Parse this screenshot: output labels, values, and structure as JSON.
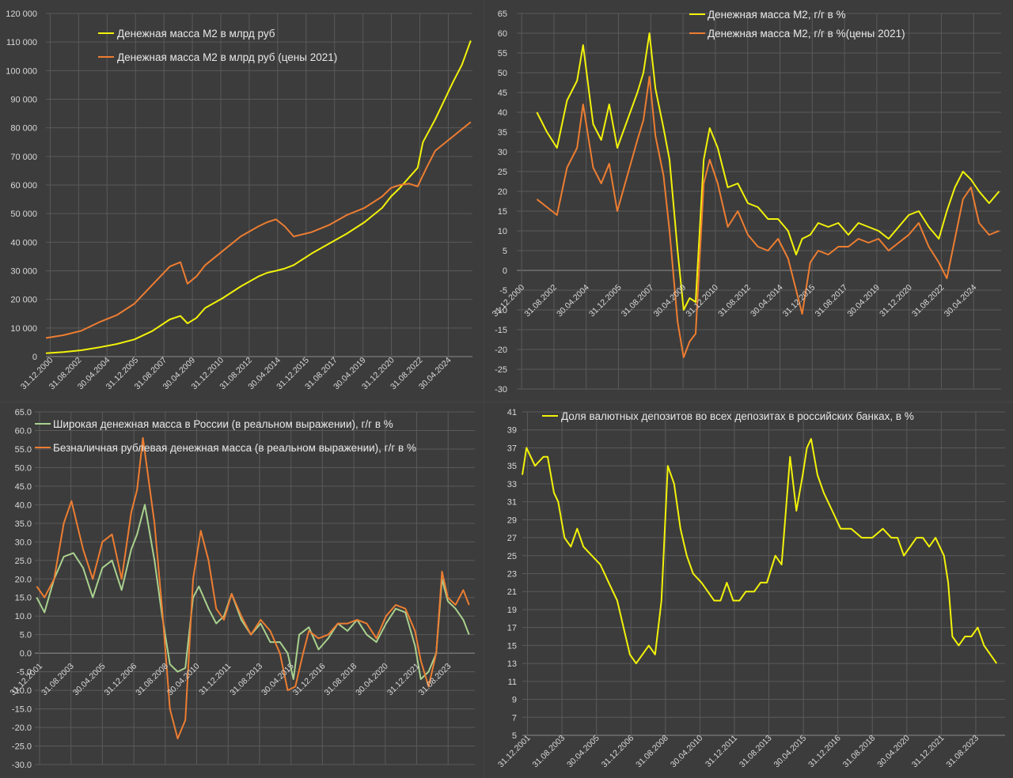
{
  "chart_data": [
    {
      "type": "line",
      "ylim": [
        0,
        120000
      ],
      "yticks": [
        0,
        10000,
        20000,
        30000,
        40000,
        50000,
        60000,
        70000,
        80000,
        90000,
        100000,
        110000,
        120000
      ],
      "ytick_labels": [
        "0",
        "10 000",
        "20 000",
        "30 000",
        "40 000",
        "50 000",
        "60 000",
        "70 000",
        "80 000",
        "90 000",
        "100 000",
        "110 000",
        "120 000"
      ],
      "xlim": [
        2001.0,
        2025.1
      ],
      "xtick_labels": [
        "31.12.2000",
        "31.08.2002",
        "30.04.2004",
        "31.12.2005",
        "31.08.2007",
        "30.04.2009",
        "31.12.2010",
        "31.08.2012",
        "30.04.2014",
        "31.12.2015",
        "31.08.2017",
        "30.04.2019",
        "31.12.2020",
        "31.08.2022",
        "30.04.2024"
      ],
      "legend_placement": "top-left",
      "series": [
        {
          "name": "Денежная масса М2 в млрд руб",
          "color": "#f2f20a",
          "x": [
            2001.0,
            2002.0,
            2003.0,
            2004.0,
            2005.0,
            2006.0,
            2007.0,
            2008.0,
            2008.6,
            2009.0,
            2009.5,
            2010.0,
            2011.0,
            2012.0,
            2013.0,
            2013.5,
            2014.0,
            2014.5,
            2015.0,
            2016.0,
            2017.0,
            2018.0,
            2019.0,
            2020.0,
            2020.5,
            2021.0,
            2022.0,
            2022.3,
            2023.0,
            2024.0,
            2024.5,
            2025.0
          ],
          "y": [
            1200,
            1600,
            2200,
            3200,
            4400,
            6000,
            8900,
            13000,
            14200,
            11600,
            13500,
            17000,
            20500,
            24500,
            28000,
            29300,
            30000,
            30800,
            32000,
            36000,
            39500,
            43000,
            47000,
            52000,
            56000,
            59000,
            66000,
            75000,
            83000,
            96000,
            102000,
            110500
          ]
        },
        {
          "name": "Денежная масса М2 в млрд руб (цены 2021)",
          "color": "#ed7d31",
          "x": [
            2001.0,
            2002.0,
            2003.0,
            2004.0,
            2005.0,
            2006.0,
            2007.0,
            2008.0,
            2008.6,
            2009.0,
            2009.5,
            2010.0,
            2011.0,
            2012.0,
            2013.0,
            2013.5,
            2014.0,
            2014.5,
            2015.0,
            2016.0,
            2017.0,
            2018.0,
            2019.0,
            2020.0,
            2020.5,
            2021.0,
            2021.5,
            2022.0,
            2022.5,
            2023.0,
            2024.0,
            2025.0
          ],
          "y": [
            6500,
            7500,
            9000,
            12000,
            14500,
            18500,
            25000,
            31500,
            33000,
            25500,
            28000,
            32000,
            37000,
            42000,
            45500,
            47000,
            48000,
            45500,
            42000,
            43500,
            46000,
            49500,
            52000,
            56000,
            59000,
            60000,
            60500,
            59500,
            66000,
            72000,
            77000,
            82000
          ]
        }
      ]
    },
    {
      "type": "line",
      "ylim": [
        -30,
        65
      ],
      "yticks": [
        -30,
        -25,
        -20,
        -15,
        -10,
        -5,
        0,
        5,
        10,
        15,
        20,
        25,
        30,
        35,
        40,
        45,
        50,
        55,
        60,
        65
      ],
      "ytick_labels": [
        "-30",
        "-25",
        "-20",
        "-15",
        "-10",
        "-5",
        "0",
        "5",
        "10",
        "15",
        "20",
        "25",
        "30",
        "35",
        "40",
        "45",
        "50",
        "55",
        "60",
        "65"
      ],
      "xlim": [
        2001.0,
        2025.1
      ],
      "xtick_labels": [
        "31.12.2000",
        "31.08.2002",
        "30.04.2004",
        "31.12.2005",
        "31.08.2007",
        "30.04.2009",
        "31.12.2010",
        "31.08.2012",
        "30.04.2014",
        "31.12.2015",
        "31.08.2017",
        "30.04.2019",
        "31.12.2020",
        "31.08.2022",
        "30.04.2024"
      ],
      "legend_placement": "top-center",
      "series": [
        {
          "name": "Денежная масса М2, г/г в %",
          "color": "#f2f20a",
          "x": [
            2002.0,
            2002.5,
            2003.0,
            2003.5,
            2004.0,
            2004.3,
            2004.8,
            2005.2,
            2005.6,
            2006.0,
            2006.5,
            2007.0,
            2007.3,
            2007.6,
            2007.9,
            2008.3,
            2008.6,
            2009.0,
            2009.3,
            2009.6,
            2009.9,
            2010.3,
            2010.6,
            2011.0,
            2011.5,
            2012.0,
            2012.5,
            2013.0,
            2013.5,
            2014.0,
            2014.5,
            2014.9,
            2015.2,
            2015.6,
            2016.0,
            2016.5,
            2017.0,
            2017.5,
            2018.0,
            2018.5,
            2019.0,
            2019.5,
            2020.0,
            2020.5,
            2021.0,
            2021.5,
            2022.0,
            2022.4,
            2022.8,
            2023.2,
            2023.6,
            2024.0,
            2024.5,
            2025.0
          ],
          "y": [
            40,
            35,
            31,
            43,
            48,
            57,
            37,
            33,
            42,
            31,
            38,
            45,
            50,
            60,
            46,
            36,
            28,
            5,
            -10,
            -7,
            -8,
            28,
            36,
            31,
            21,
            22,
            17,
            16,
            13,
            13,
            10,
            4,
            8,
            9,
            12,
            11,
            12,
            9,
            12,
            11,
            10,
            8,
            11,
            14,
            15,
            11,
            8,
            15,
            21,
            25,
            23,
            20,
            17,
            20
          ]
        },
        {
          "name": "Денежная масса М2, г/г в %(цены 2021)",
          "color": "#ed7d31",
          "x": [
            2002.0,
            2002.5,
            2003.0,
            2003.5,
            2004.0,
            2004.3,
            2004.8,
            2005.2,
            2005.6,
            2006.0,
            2006.5,
            2007.0,
            2007.3,
            2007.6,
            2007.9,
            2008.3,
            2008.6,
            2009.0,
            2009.3,
            2009.6,
            2009.9,
            2010.3,
            2010.6,
            2011.0,
            2011.5,
            2012.0,
            2012.5,
            2013.0,
            2013.5,
            2014.0,
            2014.5,
            2014.9,
            2015.2,
            2015.6,
            2016.0,
            2016.5,
            2017.0,
            2017.5,
            2018.0,
            2018.5,
            2019.0,
            2019.5,
            2020.0,
            2020.5,
            2021.0,
            2021.5,
            2022.0,
            2022.4,
            2022.8,
            2023.2,
            2023.6,
            2024.0,
            2024.5,
            2025.0
          ],
          "y": [
            18,
            16,
            14,
            26,
            31,
            42,
            26,
            22,
            27,
            15,
            24,
            33,
            38,
            49,
            34,
            24,
            10,
            -13,
            -22,
            -18,
            -16,
            22,
            28,
            22,
            11,
            15,
            9,
            6,
            5,
            8,
            3,
            -5,
            -11,
            2,
            5,
            4,
            6,
            6,
            8,
            7,
            8,
            5,
            7,
            9,
            12,
            6,
            2,
            -2,
            8,
            18,
            21,
            12,
            9,
            10
          ]
        }
      ]
    },
    {
      "type": "line",
      "ylim": [
        -30,
        65
      ],
      "yticks": [
        -30,
        -25,
        -20,
        -15,
        -10,
        -5,
        0,
        5,
        10,
        15,
        20,
        25,
        30,
        35,
        40,
        45,
        50,
        55,
        60,
        65
      ],
      "ytick_labels": [
        "-30.0",
        "-25.0",
        "-20.0",
        "-15.0",
        "-10.0",
        "-5.0",
        "0.0",
        "5.0",
        "10.0",
        "15.0",
        "20.0",
        "25.0",
        "30.0",
        "35.0",
        "40.0",
        "45.0",
        "50.0",
        "55.0",
        "60.0",
        "65.0"
      ],
      "xlim": [
        2001.8,
        2024.6
      ],
      "xtick_labels": [
        "31.12.2001",
        "31.08.2003",
        "30.04.2005",
        "31.12.2006",
        "31.08.2008",
        "30.04.2010",
        "31.12.2011",
        "31.08.2013",
        "30.04.2015",
        "31.12.2016",
        "31.08.2018",
        "30.04.2020",
        "31.12.2021",
        "31.08.2023"
      ],
      "legend_placement": "top-left",
      "series": [
        {
          "name": "Широкая денежная масса в России (в реальном выражении), г/г в %",
          "color": "#a9d18e",
          "x": [
            2001.9,
            2002.3,
            2002.8,
            2003.3,
            2003.8,
            2004.3,
            2004.8,
            2005.3,
            2005.8,
            2006.3,
            2006.8,
            2007.1,
            2007.5,
            2008.0,
            2008.4,
            2008.8,
            2009.2,
            2009.6,
            2010.0,
            2010.3,
            2010.8,
            2011.2,
            2011.6,
            2012.0,
            2012.5,
            2013.0,
            2013.5,
            2014.0,
            2014.5,
            2014.9,
            2015.2,
            2015.5,
            2016.0,
            2016.5,
            2017.0,
            2017.5,
            2018.0,
            2018.5,
            2019.0,
            2019.5,
            2020.0,
            2020.5,
            2021.0,
            2021.5,
            2021.8,
            2022.2,
            2022.6,
            2022.9,
            2023.2,
            2023.6,
            2024.0,
            2024.3
          ],
          "y": [
            15,
            11,
            20,
            26,
            27,
            23,
            15,
            23,
            25,
            17,
            28,
            32,
            40,
            25,
            10,
            -3,
            -5,
            -4,
            15,
            18,
            12,
            8,
            10,
            16,
            9,
            5,
            8,
            3,
            3,
            0,
            -7,
            5,
            7,
            1,
            4,
            8,
            6,
            9,
            5,
            3,
            8,
            12,
            11,
            2,
            -7,
            -5,
            0,
            20,
            14,
            12,
            9,
            5
          ]
        },
        {
          "name": "Безналичная рублевая денежная масса (в реальном выражении), г/г в %",
          "color": "#ed7d31",
          "x": [
            2001.9,
            2002.3,
            2002.8,
            2003.3,
            2003.7,
            2004.3,
            2004.8,
            2005.3,
            2005.8,
            2006.3,
            2006.8,
            2007.1,
            2007.4,
            2008.0,
            2008.4,
            2008.8,
            2009.2,
            2009.6,
            2010.0,
            2010.4,
            2010.8,
            2011.2,
            2011.6,
            2012.0,
            2012.5,
            2013.0,
            2013.5,
            2014.0,
            2014.5,
            2014.9,
            2015.3,
            2015.7,
            2016.0,
            2016.5,
            2017.0,
            2017.5,
            2018.0,
            2018.5,
            2019.0,
            2019.5,
            2020.0,
            2020.5,
            2021.0,
            2021.5,
            2021.8,
            2022.2,
            2022.6,
            2022.9,
            2023.2,
            2023.6,
            2024.0,
            2024.3
          ],
          "y": [
            18,
            15,
            20,
            35,
            41,
            28,
            20,
            30,
            32,
            20,
            38,
            44,
            58,
            35,
            12,
            -15,
            -23,
            -18,
            20,
            33,
            25,
            12,
            9,
            16,
            10,
            5,
            9,
            6,
            0,
            -10,
            -9,
            0,
            6,
            4,
            5,
            8,
            8,
            9,
            8,
            4,
            10,
            13,
            12,
            6,
            -2,
            -9,
            0,
            22,
            15,
            13,
            17,
            13
          ]
        }
      ]
    },
    {
      "type": "line",
      "ylim": [
        5,
        41
      ],
      "yticks": [
        5,
        7,
        9,
        11,
        13,
        15,
        17,
        19,
        21,
        23,
        25,
        27,
        29,
        31,
        33,
        35,
        37,
        39,
        41
      ],
      "ytick_labels": [
        "5",
        "7",
        "9",
        "11",
        "13",
        "15",
        "17",
        "19",
        "21",
        "23",
        "25",
        "27",
        "29",
        "31",
        "33",
        "35",
        "37",
        "39",
        "41"
      ],
      "xlim": [
        2001.9,
        2024.8
      ],
      "xtick_labels": [
        "31.12.2001",
        "31.08.2003",
        "30.04.2005",
        "31.12.2006",
        "31.08.2008",
        "30.04.2010",
        "31.12.2011",
        "31.08.2013",
        "30.04.2015",
        "31.12.2016",
        "31.08.2018",
        "30.04.2020",
        "31.12.2021",
        "31.08.2023"
      ],
      "legend_placement": "top-left",
      "series": [
        {
          "name": "Доля валютных депозитов во всех депозитах в российских банках,  в %",
          "color": "#f2f20a",
          "x": [
            2001.9,
            2002.1,
            2002.5,
            2002.9,
            2003.1,
            2003.4,
            2003.6,
            2003.9,
            2004.2,
            2004.5,
            2004.8,
            2005.2,
            2005.6,
            2006.0,
            2006.4,
            2006.7,
            2007.0,
            2007.3,
            2007.6,
            2007.9,
            2008.2,
            2008.5,
            2008.8,
            2009.1,
            2009.4,
            2009.7,
            2010.0,
            2010.4,
            2010.7,
            2011.0,
            2011.3,
            2011.6,
            2011.9,
            2012.2,
            2012.5,
            2012.9,
            2013.2,
            2013.5,
            2013.9,
            2014.2,
            2014.4,
            2014.6,
            2014.9,
            2015.2,
            2015.4,
            2015.6,
            2015.9,
            2016.2,
            2016.6,
            2017.0,
            2017.5,
            2018.0,
            2018.5,
            2019.0,
            2019.4,
            2019.7,
            2020.0,
            2020.3,
            2020.6,
            2020.9,
            2021.2,
            2021.5,
            2021.7,
            2021.9,
            2022.1,
            2022.3,
            2022.6,
            2022.9,
            2023.2,
            2023.5,
            2023.8,
            2024.1,
            2024.4
          ],
          "y": [
            34,
            37,
            35,
            36,
            36,
            32,
            31,
            27,
            26,
            28,
            26,
            25,
            24,
            22,
            20,
            17,
            14,
            13,
            14,
            15,
            14,
            20,
            35,
            33,
            28,
            25,
            23,
            22,
            21,
            20,
            20,
            22,
            20,
            20,
            21,
            21,
            22,
            22,
            25,
            24,
            30,
            36,
            30,
            34,
            37,
            38,
            34,
            32,
            30,
            28,
            28,
            27,
            27,
            28,
            27,
            27,
            25,
            26,
            27,
            27,
            26,
            27,
            26,
            25,
            22,
            16,
            15,
            16,
            16,
            17,
            15,
            14,
            13
          ]
        }
      ]
    }
  ]
}
